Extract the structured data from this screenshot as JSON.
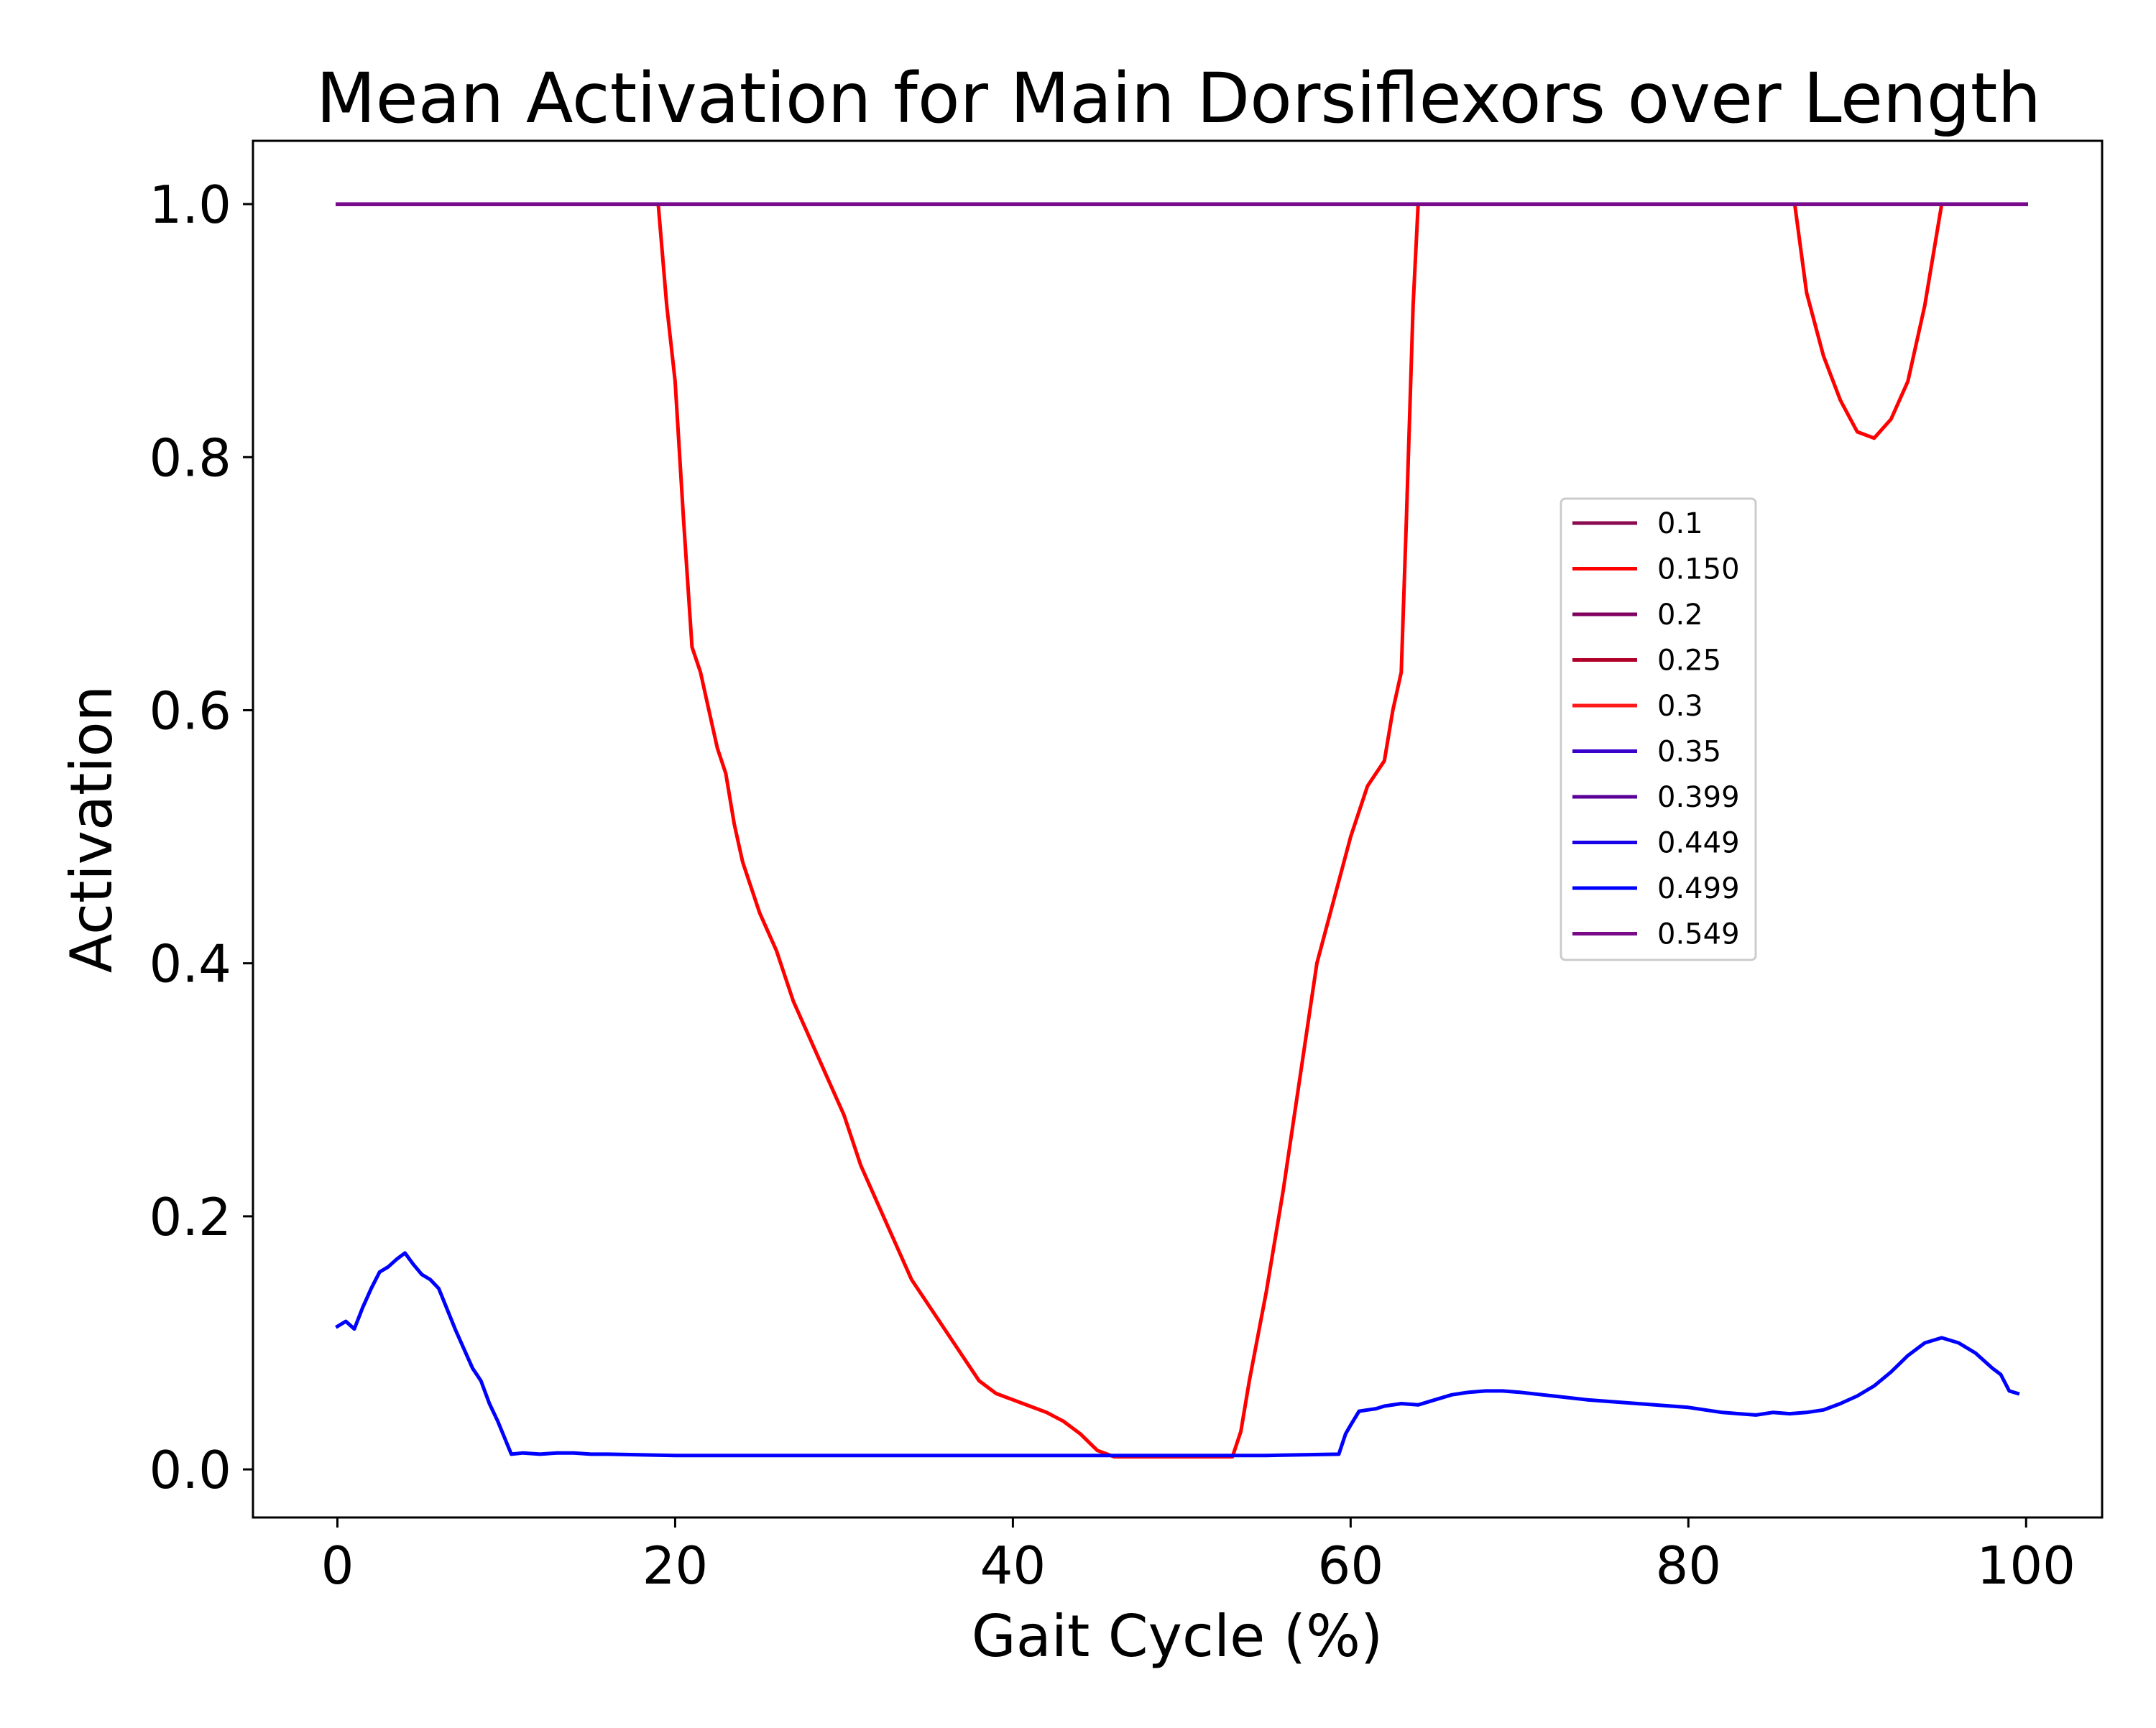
{
  "chart_data": {
    "type": "line",
    "title": "Mean Activation for Main Dorsiflexors over Length",
    "xlabel": "Gait Cycle (%)",
    "ylabel": "Activation",
    "xlim": [
      -5,
      104.5
    ],
    "ylim": [
      -0.038,
      1.05
    ],
    "xticks": [
      0,
      20,
      40,
      60,
      80,
      100
    ],
    "yticks": [
      0.0,
      0.2,
      0.4,
      0.6,
      0.8,
      1.0
    ],
    "xtick_labels": [
      "0",
      "20",
      "40",
      "60",
      "80",
      "100"
    ],
    "ytick_labels": [
      "0.0",
      "0.2",
      "0.4",
      "0.6",
      "0.8",
      "1.0"
    ],
    "grid": false,
    "legend_position": "center-right",
    "series": [
      {
        "name": "0.1",
        "color": "#8b0a50",
        "x": [
          0,
          100
        ],
        "y": [
          1.0,
          1.0
        ]
      },
      {
        "name": "0.150",
        "color": "#ff0000",
        "x": [
          0,
          19,
          19.5,
          20,
          20.5,
          21,
          21.5,
          22,
          22.5,
          23,
          23.5,
          24,
          25,
          26,
          27,
          28,
          29,
          30,
          31,
          32,
          33,
          34,
          35,
          36,
          37,
          38,
          39,
          40,
          41,
          42,
          43,
          44,
          45,
          46,
          47,
          50,
          53,
          53.5,
          54,
          55,
          56,
          57,
          58,
          59,
          60,
          61,
          62,
          62.5,
          63,
          63.3,
          63.7,
          64,
          70,
          80,
          86.3,
          87,
          88,
          89,
          90,
          91,
          92,
          93,
          94,
          95,
          100
        ],
        "y": [
          1.0,
          1.0,
          0.92,
          0.86,
          0.75,
          0.65,
          0.63,
          0.6,
          0.57,
          0.55,
          0.51,
          0.48,
          0.44,
          0.41,
          0.37,
          0.34,
          0.31,
          0.28,
          0.24,
          0.21,
          0.18,
          0.15,
          0.13,
          0.11,
          0.09,
          0.07,
          0.06,
          0.055,
          0.05,
          0.045,
          0.038,
          0.028,
          0.015,
          0.01,
          0.01,
          0.01,
          0.01,
          0.03,
          0.07,
          0.14,
          0.22,
          0.31,
          0.4,
          0.45,
          0.5,
          0.54,
          0.56,
          0.6,
          0.63,
          0.75,
          0.92,
          1.0,
          1.0,
          1.0,
          1.0,
          0.93,
          0.88,
          0.845,
          0.82,
          0.815,
          0.83,
          0.86,
          0.92,
          1.0,
          1.0
        ]
      },
      {
        "name": "0.2",
        "color": "#800060",
        "x": [
          0,
          100
        ],
        "y": [
          1.0,
          1.0
        ]
      },
      {
        "name": "0.25",
        "color": "#b0002a",
        "x": [
          0,
          100
        ],
        "y": [
          1.0,
          1.0
        ]
      },
      {
        "name": "0.3",
        "color": "#ff1a1a",
        "x": [
          0,
          100
        ],
        "y": [
          1.0,
          1.0
        ]
      },
      {
        "name": "0.35",
        "color": "#3a00cc",
        "x": [
          0,
          100
        ],
        "y": [
          1.0,
          1.0
        ]
      },
      {
        "name": "0.399",
        "color": "#5a0099",
        "x": [
          0,
          100
        ],
        "y": [
          1.0,
          1.0
        ]
      },
      {
        "name": "0.449",
        "color": "#1a00e6",
        "x": [
          0,
          100
        ],
        "y": [
          1.0,
          1.0
        ]
      },
      {
        "name": "0.499",
        "color": "#0000ff",
        "x": [
          0,
          0.5,
          1,
          1.5,
          2,
          2.5,
          3,
          3.5,
          4,
          4.5,
          5,
          5.5,
          6,
          7,
          8,
          8.5,
          9,
          9.5,
          10.3,
          11,
          12,
          13,
          14,
          15,
          16,
          20,
          25,
          30,
          35,
          40,
          45,
          50,
          55,
          59.3,
          59.7,
          60,
          60.5,
          61,
          61.5,
          62,
          63,
          64,
          65,
          66,
          67,
          68,
          69,
          70,
          72,
          74,
          76,
          78,
          80,
          82,
          84,
          85,
          86,
          87,
          88,
          89,
          90,
          91,
          92,
          93,
          94,
          95,
          96,
          97,
          98,
          98.5,
          99,
          99.5
        ],
        "y": [
          0.113,
          0.117,
          0.111,
          0.128,
          0.143,
          0.156,
          0.16,
          0.166,
          0.171,
          0.162,
          0.154,
          0.15,
          0.143,
          0.11,
          0.08,
          0.07,
          0.052,
          0.038,
          0.012,
          0.013,
          0.012,
          0.013,
          0.013,
          0.012,
          0.012,
          0.011,
          0.011,
          0.011,
          0.011,
          0.011,
          0.011,
          0.011,
          0.011,
          0.012,
          0.028,
          0.035,
          0.046,
          0.047,
          0.048,
          0.05,
          0.052,
          0.051,
          0.055,
          0.059,
          0.061,
          0.062,
          0.062,
          0.061,
          0.058,
          0.055,
          0.053,
          0.051,
          0.049,
          0.045,
          0.043,
          0.045,
          0.044,
          0.045,
          0.047,
          0.052,
          0.058,
          0.066,
          0.077,
          0.09,
          0.1,
          0.104,
          0.1,
          0.092,
          0.08,
          0.075,
          0.062,
          0.06
        ]
      },
      {
        "name": "0.549",
        "color": "#7a0a8a",
        "x": [
          0,
          100
        ],
        "y": [
          1.0,
          1.0
        ]
      }
    ]
  }
}
